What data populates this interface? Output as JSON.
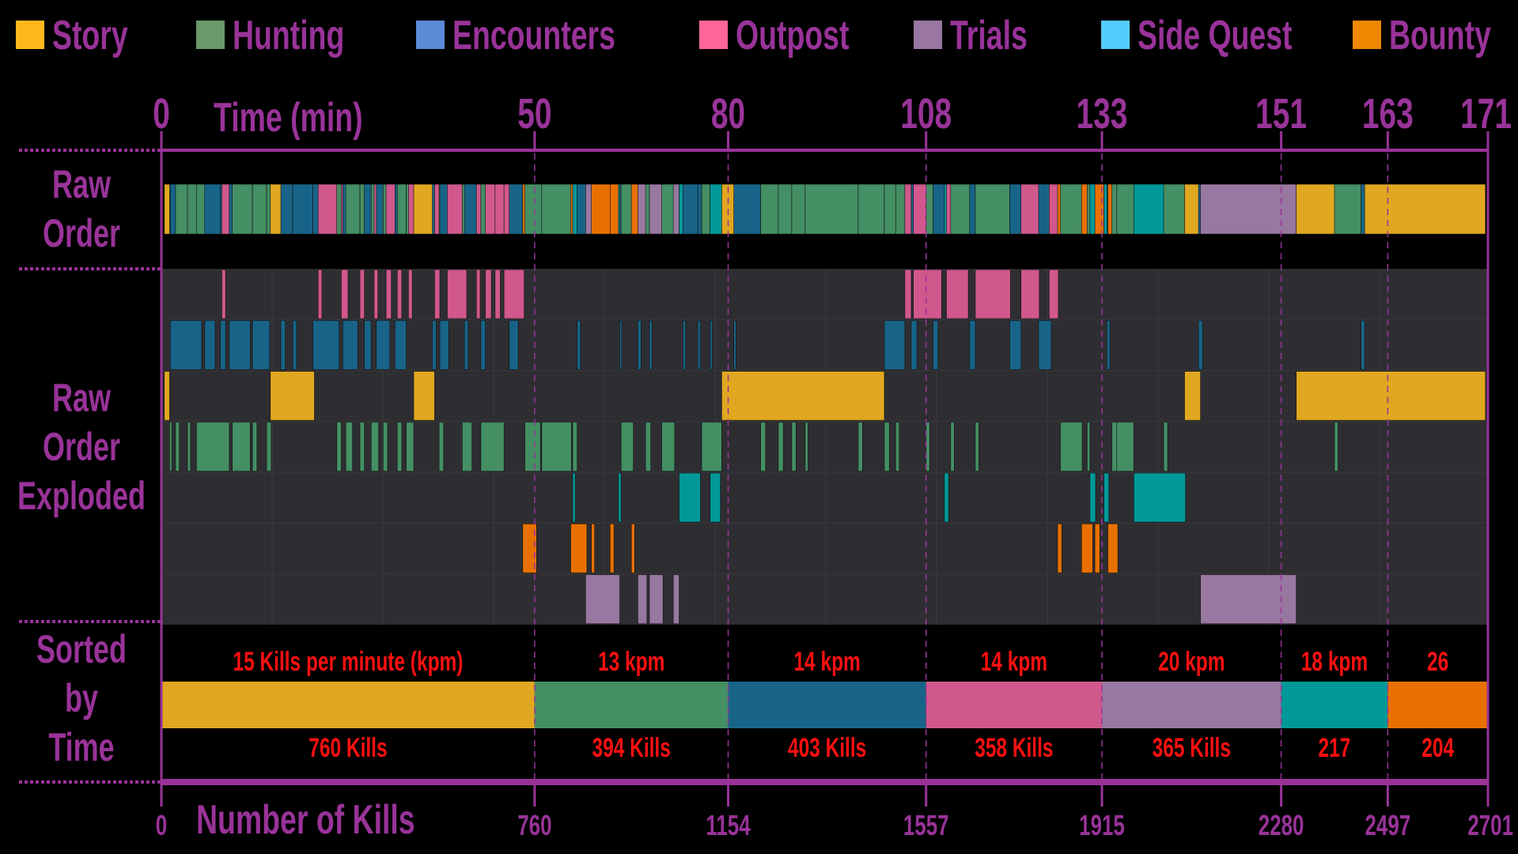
{
  "chart_data": {
    "type": "timeline",
    "colors": {
      "Story": "#E0A820",
      "Hunting": "#458F64",
      "Encounters": "#186488",
      "Outpost": "#D0588C",
      "Trials": "#9878A0",
      "Side Quest": "#009898",
      "Bounty": "#E87000"
    },
    "legend": [
      {
        "name": "Story",
        "color": "#FFB81C"
      },
      {
        "name": "Hunting",
        "color": "#6A9A6A"
      },
      {
        "name": "Encounters",
        "color": "#5B8BD6"
      },
      {
        "name": "Outpost",
        "color": "#FF6699"
      },
      {
        "name": "Trials",
        "color": "#9977A0"
      },
      {
        "name": "Side Quest",
        "color": "#55CCFF"
      },
      {
        "name": "Bounty",
        "color": "#EE8800"
      }
    ],
    "legend_placement": "top",
    "top_axis": {
      "label": "Time (min)",
      "ticks": [
        0,
        50,
        80,
        108,
        133,
        151,
        163,
        171
      ]
    },
    "bottom_axis": {
      "label": "Number of Kills",
      "ticks": [
        0,
        760,
        1154,
        1557,
        1915,
        2280,
        2497,
        2701
      ]
    },
    "row_labels": {
      "raw": [
        "Raw",
        "Order"
      ],
      "exploded": [
        "Raw",
        "Order",
        "Exploded"
      ],
      "sorted": [
        "Sorted",
        "by",
        "Time"
      ]
    },
    "exploded_row_order": [
      "Outpost",
      "Encounters",
      "Story",
      "Hunting",
      "Side Quest",
      "Bounty",
      "Trials"
    ],
    "segments_min": {
      "Outpost": [
        [
          8.1,
          8.6
        ],
        [
          21.0,
          21.5
        ],
        [
          24.1,
          25.0
        ],
        [
          26.6,
          27.2
        ],
        [
          28.5,
          29.0
        ],
        [
          30.1,
          30.8
        ],
        [
          31.6,
          32.2
        ],
        [
          33.1,
          33.6
        ],
        [
          36.6,
          37.3
        ],
        [
          38.3,
          40.9
        ],
        [
          42.2,
          42.7
        ],
        [
          43.4,
          44.2
        ],
        [
          44.7,
          45.4
        ],
        [
          45.9,
          48.6
        ],
        [
          105.0,
          105.9
        ],
        [
          106.2,
          110.2
        ],
        [
          110.9,
          114.0
        ],
        [
          115.0,
          120.0
        ],
        [
          121.5,
          124.1
        ],
        [
          125.5,
          126.8
        ]
      ],
      "Encounters": [
        [
          1.2,
          5.4
        ],
        [
          5.8,
          7.2
        ],
        [
          7.9,
          8.6
        ],
        [
          9.1,
          11.9
        ],
        [
          12.2,
          14.5
        ],
        [
          16.0,
          16.6
        ],
        [
          17.6,
          18.1
        ],
        [
          20.3,
          23.8
        ],
        [
          24.3,
          26.3
        ],
        [
          27.2,
          28.1
        ],
        [
          28.8,
          30.6
        ],
        [
          31.3,
          32.8
        ],
        [
          36.3,
          36.8
        ],
        [
          37.3,
          38.5
        ],
        [
          40.6,
          41.1
        ],
        [
          42.8,
          43.4
        ],
        [
          46.6,
          47.8
        ],
        [
          56.6,
          57.1
        ],
        [
          63.2,
          63.5
        ],
        [
          66.0,
          66.5
        ],
        [
          67.8,
          68.2
        ],
        [
          73.0,
          73.4
        ],
        [
          75.3,
          75.7
        ],
        [
          77.2,
          77.5
        ],
        [
          80.8,
          81.1
        ],
        [
          102.1,
          105.0
        ],
        [
          105.9,
          106.7
        ],
        [
          109.0,
          109.7
        ],
        [
          114.2,
          115.0
        ],
        [
          119.9,
          121.5
        ],
        [
          124.0,
          125.8
        ],
        [
          133.5,
          133.8
        ],
        [
          142.7,
          143.1
        ],
        [
          160.0,
          160.4
        ]
      ],
      "Story": [
        [
          0.4,
          1.1
        ],
        [
          14.6,
          20.5
        ],
        [
          33.8,
          36.6
        ],
        [
          79.0,
          102.1
        ],
        [
          141.3,
          142.9
        ],
        [
          152.7,
          170.8
        ]
      ],
      "Hunting": [
        [
          1.1,
          1.4
        ],
        [
          1.9,
          2.4
        ],
        [
          3.5,
          3.9
        ],
        [
          4.7,
          9.1
        ],
        [
          9.5,
          11.9
        ],
        [
          12.2,
          12.8
        ],
        [
          14.1,
          14.7
        ],
        [
          23.5,
          24.1
        ],
        [
          24.7,
          25.6
        ],
        [
          26.6,
          27.2
        ],
        [
          28.1,
          29.1
        ],
        [
          29.7,
          30.3
        ],
        [
          31.6,
          32.2
        ],
        [
          32.8,
          33.8
        ],
        [
          37.2,
          37.8
        ],
        [
          40.3,
          41.6
        ],
        [
          42.8,
          45.9
        ],
        [
          48.7,
          50.9
        ],
        [
          51.1,
          55.7
        ],
        [
          55.9,
          56.6
        ],
        [
          63.4,
          65.3
        ],
        [
          67.2,
          68.0
        ],
        [
          69.7,
          71.7
        ],
        [
          75.9,
          79.0
        ],
        [
          84.6,
          85.3
        ],
        [
          87.1,
          87.8
        ],
        [
          89.0,
          89.6
        ],
        [
          90.9,
          91.3
        ],
        [
          98.4,
          99.0
        ],
        [
          102.1,
          102.8
        ],
        [
          103.7,
          104.2
        ],
        [
          108.0,
          108.5
        ],
        [
          111.5,
          112.0
        ],
        [
          115.0,
          115.5
        ],
        [
          127.1,
          130.2
        ],
        [
          130.9,
          131.3
        ],
        [
          134.0,
          134.5
        ],
        [
          134.5,
          136.2
        ],
        [
          139.2,
          139.6
        ],
        [
          157.0,
          157.4
        ]
      ],
      "Side Quest": [
        [
          55.9,
          56.3
        ],
        [
          63.0,
          63.4
        ],
        [
          72.4,
          75.7
        ],
        [
          77.2,
          78.8
        ],
        [
          110.6,
          111.2
        ],
        [
          131.3,
          132.1
        ],
        [
          133.2,
          133.7
        ],
        [
          136.2,
          141.4
        ]
      ],
      "Bounty": [
        [
          48.4,
          50.3
        ],
        [
          55.6,
          58.1
        ],
        [
          58.8,
          59.3
        ],
        [
          61.7,
          62.3
        ],
        [
          65.0,
          65.5
        ],
        [
          126.7,
          127.3
        ],
        [
          130.1,
          131.7
        ],
        [
          132.0,
          132.7
        ],
        [
          133.6,
          134.6
        ]
      ],
      "Trials": [
        [
          57.9,
          63.2
        ],
        [
          66.0,
          67.4
        ],
        [
          67.8,
          69.9
        ],
        [
          71.5,
          72.4
        ],
        [
          142.9,
          152.7
        ]
      ]
    },
    "sorted": [
      {
        "category": "Story",
        "kills_start": 0,
        "kills_end": 760,
        "kpm_label": "15 Kills per minute (kpm)",
        "kills_label": "760 Kills"
      },
      {
        "category": "Hunting",
        "kills_start": 760,
        "kills_end": 1154,
        "kpm_label": "13 kpm",
        "kills_label": "394 Kills"
      },
      {
        "category": "Encounters",
        "kills_start": 1154,
        "kills_end": 1557,
        "kpm_label": "14 kpm",
        "kills_label": "403 Kills"
      },
      {
        "category": "Outpost",
        "kills_start": 1557,
        "kills_end": 1915,
        "kpm_label": "14 kpm",
        "kills_label": "358 Kills"
      },
      {
        "category": "Trials",
        "kills_start": 1915,
        "kills_end": 2280,
        "kpm_label": "20 kpm",
        "kills_label": "365 Kills"
      },
      {
        "category": "Side Quest",
        "kills_start": 2280,
        "kills_end": 2497,
        "kpm_label": "18 kpm",
        "kills_label": "217"
      },
      {
        "category": "Bounty",
        "kills_start": 2497,
        "kills_end": 2701,
        "kpm_label": "26",
        "kills_label": "204"
      }
    ],
    "axis_color": "#993399",
    "annotation_color": "#FF1010",
    "exploded_background": "#2E2E32"
  }
}
